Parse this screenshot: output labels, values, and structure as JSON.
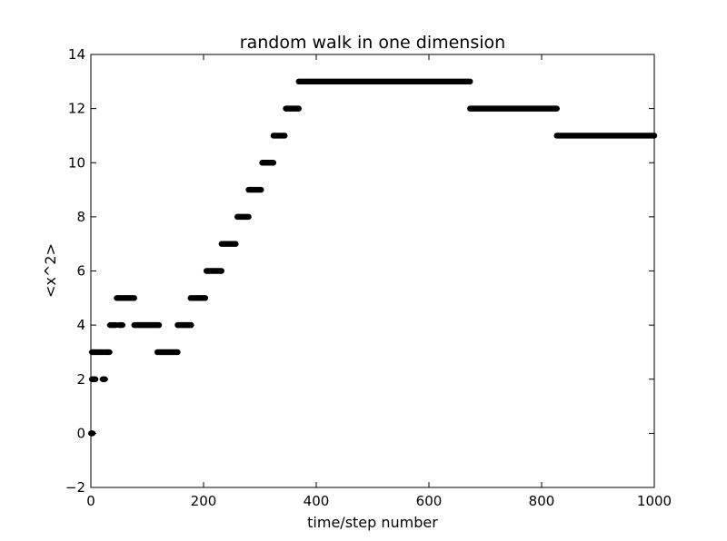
{
  "chart_data": {
    "type": "scatter",
    "title": "random walk in one dimension",
    "xlabel": "time/step number",
    "ylabel": "<x^2>",
    "xlim": [
      0,
      1000
    ],
    "ylim": [
      -2,
      14
    ],
    "xticks": [
      "0",
      "200",
      "400",
      "600",
      "800",
      "1000"
    ],
    "yticks": [
      "−2",
      "0",
      "2",
      "4",
      "6",
      "8",
      "10",
      "12",
      "14"
    ],
    "xtick_values": [
      0,
      200,
      400,
      600,
      800,
      1000
    ],
    "ytick_values": [
      -2,
      0,
      2,
      4,
      6,
      8,
      10,
      12,
      14
    ],
    "grid": false,
    "marker_color": "#000000",
    "points": [
      {
        "x": 0,
        "y": 0
      },
      {
        "x": 1,
        "y": 0
      },
      {
        "x": 2,
        "y": 0
      },
      {
        "x": 3,
        "y": 2
      },
      {
        "x": 5,
        "y": 2
      },
      {
        "x": 7,
        "y": 2
      },
      {
        "x": 3,
        "y": 3
      },
      {
        "x": 5,
        "y": 3
      },
      {
        "x": 7,
        "y": 3
      },
      {
        "x": 10,
        "y": 3
      },
      {
        "x": 13,
        "y": 3
      },
      {
        "x": 16,
        "y": 3
      },
      {
        "x": 19,
        "y": 3
      },
      {
        "x": 22,
        "y": 3
      },
      {
        "x": 22,
        "y": 2
      },
      {
        "x": 24,
        "y": 2
      },
      {
        "x": 26,
        "y": 3
      },
      {
        "x": 29,
        "y": 3
      },
      {
        "x": 32,
        "y": 3
      },
      {
        "x": 35,
        "y": 4
      },
      {
        "x": 38,
        "y": 4
      },
      {
        "x": 41,
        "y": 4
      },
      {
        "x": 44,
        "y": 4
      },
      {
        "x": 47,
        "y": 5
      },
      {
        "x": 51,
        "y": 4
      },
      {
        "x": 55,
        "y": 4
      }
    ],
    "segments": [
      {
        "x0": 47,
        "x1": 77,
        "y": 5
      },
      {
        "x0": 77,
        "x1": 121,
        "y": 4
      },
      {
        "x0": 118,
        "x1": 154,
        "y": 3
      },
      {
        "x0": 154,
        "x1": 178,
        "y": 4
      },
      {
        "x0": 177,
        "x1": 203,
        "y": 5
      },
      {
        "x0": 205,
        "x1": 232,
        "y": 6
      },
      {
        "x0": 232,
        "x1": 257,
        "y": 7
      },
      {
        "x0": 260,
        "x1": 280,
        "y": 8
      },
      {
        "x0": 280,
        "x1": 302,
        "y": 9
      },
      {
        "x0": 304,
        "x1": 324,
        "y": 10
      },
      {
        "x0": 324,
        "x1": 344,
        "y": 11
      },
      {
        "x0": 346,
        "x1": 369,
        "y": 12
      },
      {
        "x0": 369,
        "x1": 673,
        "y": 13
      },
      {
        "x0": 673,
        "x1": 827,
        "y": 12
      },
      {
        "x0": 827,
        "x1": 1000,
        "y": 11
      }
    ]
  }
}
